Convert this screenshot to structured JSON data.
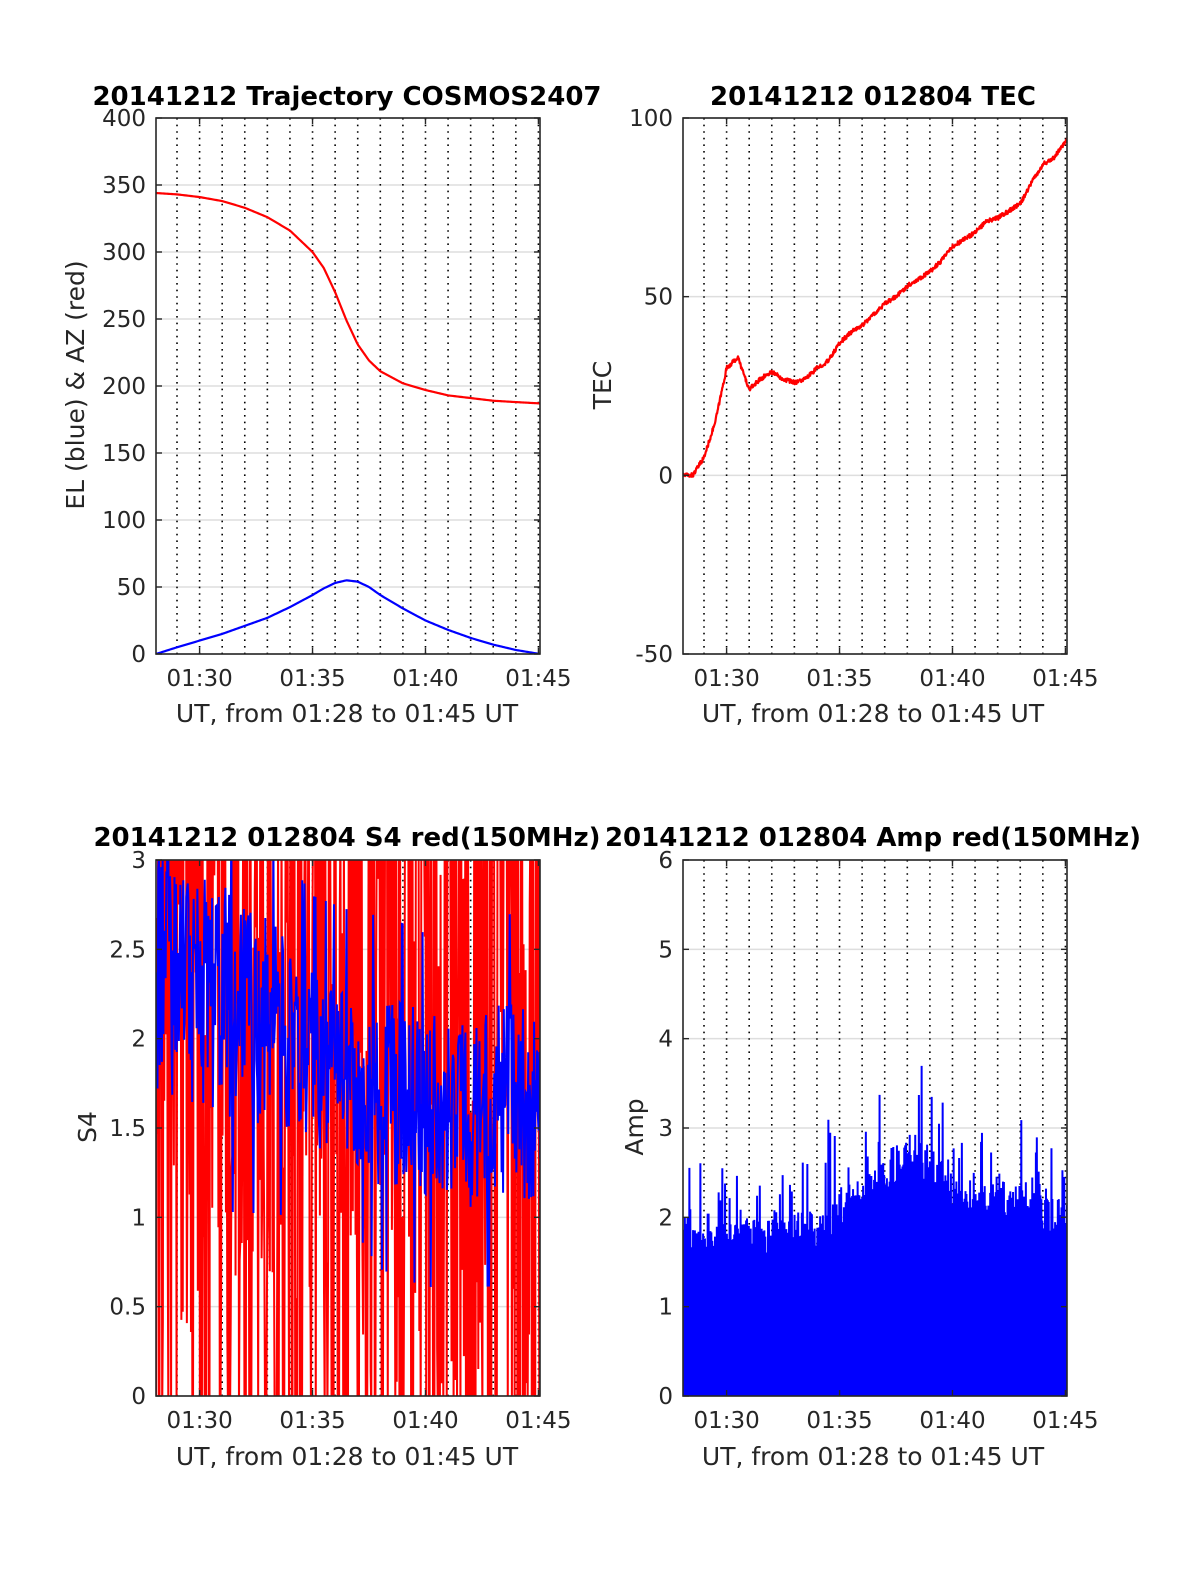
{
  "figure": {
    "background": "#ffffff"
  },
  "chart_data": [
    {
      "id": "trajectory",
      "type": "line",
      "title": "20141212 Trajectory COSMOS2407",
      "xlabel": "UT, from 01:28 to 01:45 UT",
      "ylabel": "EL (blue) & AZ (red)",
      "x_unit": "minutes after 01:00 UT",
      "xlim": [
        28.07,
        45.07
      ],
      "ylim": [
        0,
        400
      ],
      "yticks": [
        0,
        50,
        100,
        150,
        200,
        250,
        300,
        350,
        400
      ],
      "ytick_labels": [
        "0",
        "50",
        "100",
        "150",
        "200",
        "250",
        "300",
        "350",
        "400"
      ],
      "xticks": [
        30,
        35,
        40,
        45
      ],
      "xtick_labels": [
        "01:30",
        "01:35",
        "01:40",
        "01:45"
      ],
      "minor_xgrid_dotted": [
        28,
        29,
        30,
        31,
        32,
        33,
        34,
        35,
        36,
        37,
        38,
        39,
        40,
        41,
        42,
        43,
        44,
        45
      ],
      "grid": true,
      "series": [
        {
          "color": "#ff0000",
          "x": [
            28.07,
            29,
            30,
            31,
            32,
            33,
            34,
            35,
            35.5,
            36,
            36.5,
            37,
            37.5,
            38,
            39,
            40,
            41,
            42,
            43,
            44,
            45.07
          ],
          "y": [
            344,
            343,
            341,
            338,
            333,
            326,
            316,
            300,
            288,
            270,
            249,
            231,
            219,
            211,
            202,
            197,
            193,
            191,
            189,
            188,
            187
          ]
        },
        {
          "color": "#0000ff",
          "x": [
            28.07,
            29,
            30,
            31,
            32,
            33,
            34,
            35,
            35.5,
            36,
            36.5,
            37,
            37.5,
            38,
            39,
            40,
            41,
            42,
            43,
            44,
            45.07
          ],
          "y": [
            0,
            5,
            10,
            15,
            21,
            27,
            35,
            44,
            49,
            53,
            55,
            54,
            50,
            44,
            34,
            25,
            18,
            12,
            7,
            3,
            0
          ]
        }
      ]
    },
    {
      "id": "tec",
      "type": "line",
      "title": "20141212 012804 TEC",
      "xlabel": "UT, from 01:28 to 01:45 UT",
      "ylabel": "TEC",
      "x_unit": "minutes after 01:00 UT",
      "xlim": [
        28.07,
        45.07
      ],
      "ylim": [
        -50,
        100
      ],
      "yticks": [
        -50,
        0,
        50,
        100
      ],
      "ytick_labels": [
        "-50",
        "0",
        "50",
        "100"
      ],
      "xticks": [
        30,
        35,
        40,
        45
      ],
      "xtick_labels": [
        "01:30",
        "01:35",
        "01:40",
        "01:45"
      ],
      "minor_xgrid_dotted": [
        28,
        29,
        30,
        31,
        32,
        33,
        34,
        35,
        36,
        37,
        38,
        39,
        40,
        41,
        42,
        43,
        44,
        45
      ],
      "grid": true,
      "series": [
        {
          "color": "#ff0000",
          "noise": 0.6,
          "x": [
            28.07,
            28.5,
            29.0,
            29.5,
            30.0,
            30.5,
            31.0,
            31.5,
            32.0,
            32.5,
            33.0,
            33.5,
            34.0,
            34.5,
            35.0,
            35.5,
            36.0,
            36.5,
            37.0,
            37.5,
            38.0,
            38.5,
            39.0,
            39.5,
            40.0,
            40.5,
            41.0,
            41.5,
            42.0,
            42.5,
            43.0,
            43.5,
            44.0,
            44.5,
            45.07
          ],
          "y": [
            0,
            0,
            5,
            15,
            30,
            33,
            24,
            27,
            29,
            27,
            26,
            27,
            30,
            32,
            37,
            40,
            42,
            45,
            48,
            50,
            53,
            55,
            57,
            60,
            64,
            66,
            68,
            71,
            72,
            74,
            76,
            82,
            87,
            89,
            94
          ]
        }
      ]
    },
    {
      "id": "s4",
      "type": "line",
      "title": "20141212 012804 S4 red(150MHz)",
      "xlabel": "UT, from 01:28 to 01:45 UT",
      "ylabel": "S4",
      "x_unit": "minutes after 01:00 UT",
      "xlim": [
        28.07,
        45.07
      ],
      "ylim": [
        0,
        3
      ],
      "yticks": [
        0,
        0.5,
        1,
        1.5,
        2,
        2.5,
        3
      ],
      "ytick_labels": [
        "0",
        "0.5",
        "1",
        "1.5",
        "2",
        "2.5",
        "3"
      ],
      "xticks": [
        30,
        35,
        40,
        45
      ],
      "xtick_labels": [
        "01:30",
        "01:35",
        "01:40",
        "01:45"
      ],
      "minor_xgrid_dotted": [
        28,
        29,
        30,
        31,
        32,
        33,
        34,
        35,
        36,
        37,
        38,
        39,
        40,
        41,
        42,
        43,
        44,
        45
      ],
      "grid": true,
      "series": [
        {
          "color": "#ff0000",
          "style": "saturating-noise",
          "samples": 560,
          "x": [
            28.07,
            30,
            33,
            35,
            37,
            38,
            40,
            42,
            45.07
          ],
          "center": [
            2.0,
            1.9,
            1.7,
            1.6,
            1.8,
            2.0,
            1.9,
            2.1,
            2.0
          ],
          "spread": [
            1.8,
            1.7,
            1.3,
            1.0,
            1.6,
            2.0,
            2.0,
            2.1,
            2.0
          ]
        },
        {
          "color": "#0000ff",
          "style": "noise",
          "samples": 520,
          "x": [
            28.07,
            30,
            33,
            35,
            37,
            38,
            40,
            42,
            45.07
          ],
          "center": [
            2.4,
            2.3,
            2.1,
            1.9,
            1.8,
            1.7,
            1.6,
            1.6,
            1.7
          ],
          "spread": [
            0.7,
            0.7,
            0.6,
            0.5,
            0.5,
            0.55,
            0.55,
            0.55,
            0.6
          ]
        }
      ]
    },
    {
      "id": "amp",
      "type": "line",
      "title": "20141212 012804 Amp red(150MHz)",
      "xlabel": "UT, from 01:28 to 01:45 UT",
      "ylabel": "Amp",
      "x_unit": "minutes after 01:00 UT",
      "xlim": [
        28.07,
        45.07
      ],
      "ylim": [
        0,
        6
      ],
      "yticks": [
        0,
        1,
        2,
        3,
        4,
        5,
        6
      ],
      "ytick_labels": [
        "0",
        "1",
        "2",
        "3",
        "4",
        "5",
        "6"
      ],
      "xticks": [
        30,
        35,
        40,
        45
      ],
      "xtick_labels": [
        "01:30",
        "01:35",
        "01:40",
        "01:45"
      ],
      "minor_xgrid_dotted": [
        28,
        29,
        30,
        31,
        32,
        33,
        34,
        35,
        36,
        37,
        38,
        39,
        40,
        41,
        42,
        43,
        44,
        45
      ],
      "grid": true,
      "series": [
        {
          "color": "#0000ff",
          "style": "envelope-fill",
          "samples": 420,
          "x": [
            28.07,
            30,
            32,
            34,
            35,
            36,
            37,
            38,
            39,
            40,
            41,
            42,
            43,
            44,
            45.07
          ],
          "top": [
            2.0,
            2.0,
            2.0,
            2.1,
            2.3,
            2.5,
            2.7,
            3.0,
            2.8,
            2.5,
            2.4,
            2.4,
            2.4,
            2.3,
            2.2
          ],
          "peak": [
            2.7,
            2.6,
            2.6,
            2.9,
            3.5,
            3.6,
            3.6,
            4.0,
            3.8,
            3.1,
            3.3,
            3.1,
            3.2,
            2.9,
            2.6
          ]
        }
      ]
    }
  ]
}
